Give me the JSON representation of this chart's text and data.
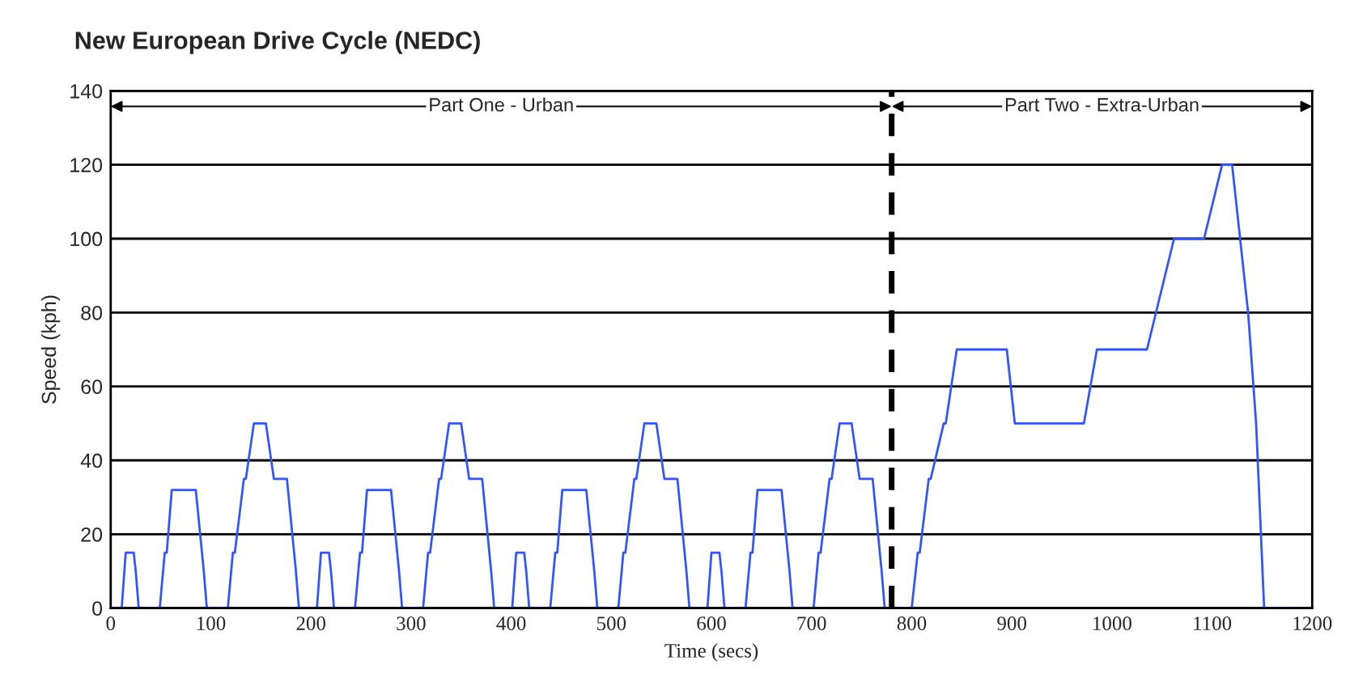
{
  "chart_data": {
    "type": "line",
    "title": "New European Drive Cycle (NEDC)",
    "xlabel": "Time (secs)",
    "ylabel": "Speed (kph)",
    "series": [
      {
        "color": "#3355ff",
        "x": [
          0,
          11,
          15,
          23,
          25,
          28,
          49,
          54,
          56,
          61,
          85,
          93,
          96,
          117,
          122,
          124,
          133,
          135,
          143,
          155,
          163,
          176,
          185,
          188,
          195,
          206,
          210,
          218,
          220,
          223,
          244,
          249,
          251,
          256,
          280,
          288,
          291,
          312,
          317,
          319,
          328,
          330,
          338,
          350,
          358,
          371,
          380,
          383,
          390,
          401,
          405,
          413,
          415,
          418,
          439,
          444,
          446,
          451,
          475,
          483,
          486,
          507,
          512,
          514,
          523,
          525,
          533,
          545,
          553,
          566,
          575,
          578,
          585,
          596,
          600,
          608,
          610,
          613,
          634,
          639,
          641,
          646,
          670,
          678,
          681,
          702,
          707,
          709,
          718,
          720,
          728,
          740,
          748,
          761,
          770,
          773,
          780,
          800,
          806,
          808,
          817,
          819,
          832,
          834,
          845,
          895,
          903,
          972,
          985,
          1035,
          1062,
          1092,
          1110,
          1120,
          1136,
          1144,
          1152,
          1180
        ],
        "values": [
          0,
          0,
          15,
          15,
          10,
          0,
          0,
          15,
          15,
          32,
          32,
          10,
          0,
          0,
          15,
          15,
          35,
          35,
          50,
          50,
          35,
          35,
          10,
          0,
          0,
          0,
          15,
          15,
          10,
          0,
          0,
          15,
          15,
          32,
          32,
          10,
          0,
          0,
          15,
          15,
          35,
          35,
          50,
          50,
          35,
          35,
          10,
          0,
          0,
          0,
          15,
          15,
          10,
          0,
          0,
          15,
          15,
          32,
          32,
          10,
          0,
          0,
          15,
          15,
          35,
          35,
          50,
          50,
          35,
          35,
          10,
          0,
          0,
          0,
          15,
          15,
          10,
          0,
          0,
          15,
          15,
          32,
          32,
          10,
          0,
          0,
          15,
          15,
          35,
          35,
          50,
          50,
          35,
          35,
          10,
          0,
          0,
          0,
          15,
          15,
          35,
          35,
          50,
          50,
          70,
          70,
          50,
          50,
          70,
          70,
          100,
          100,
          120,
          120,
          80,
          50,
          0,
          0
        ]
      }
    ],
    "xlim": [
      0,
      1200
    ],
    "xticks": [
      0,
      100,
      200,
      300,
      400,
      500,
      600,
      700,
      800,
      900,
      1000,
      1100,
      1200
    ],
    "ylim": [
      0,
      140
    ],
    "yticks": [
      0,
      20,
      40,
      60,
      80,
      100,
      120,
      140
    ],
    "grid": "y",
    "marker": "none",
    "line_style": "solid",
    "ref_lines": [
      {
        "axis": "x",
        "value": 780,
        "label": null,
        "color": "#000000",
        "line_style": "dashed"
      }
    ],
    "annotations": [
      "Part One - Urban",
      "Part Two - Extra-Urban"
    ]
  }
}
